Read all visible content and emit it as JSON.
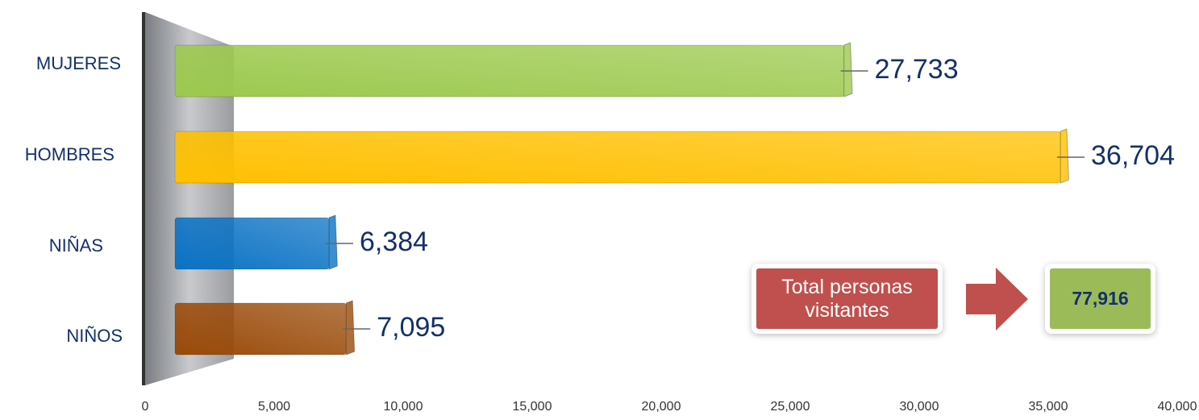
{
  "chart_data": {
    "type": "bar",
    "orientation": "horizontal",
    "categories": [
      "MUJERES",
      "HOMBRES",
      "NIÑAS",
      "NIÑOS"
    ],
    "values": [
      27733,
      36704,
      6384,
      7095
    ],
    "value_labels": [
      "27,733",
      "36,704",
      "6,384",
      "7,095"
    ],
    "colors": [
      "#9cc94e",
      "#ffc000",
      "#0a72c4",
      "#9a4a08"
    ],
    "xlim": [
      0,
      40000
    ],
    "xticks": [
      0,
      {
        "value": 5000,
        "label": "5,000"
      },
      {
        "value": 10000,
        "label": "10,000"
      },
      {
        "value": 15000,
        "label": "15,000"
      },
      {
        "value": 20000,
        "label": "20,000"
      },
      {
        "value": 25000,
        "label": "25,000"
      },
      {
        "value": 30000,
        "label": "30,000"
      },
      {
        "value": 35000,
        "label": "35,000"
      },
      {
        "value": 40000,
        "label": "40,000"
      }
    ],
    "annotations": {
      "total_label": "Total personas visitantes",
      "total_value": "77,916"
    }
  }
}
